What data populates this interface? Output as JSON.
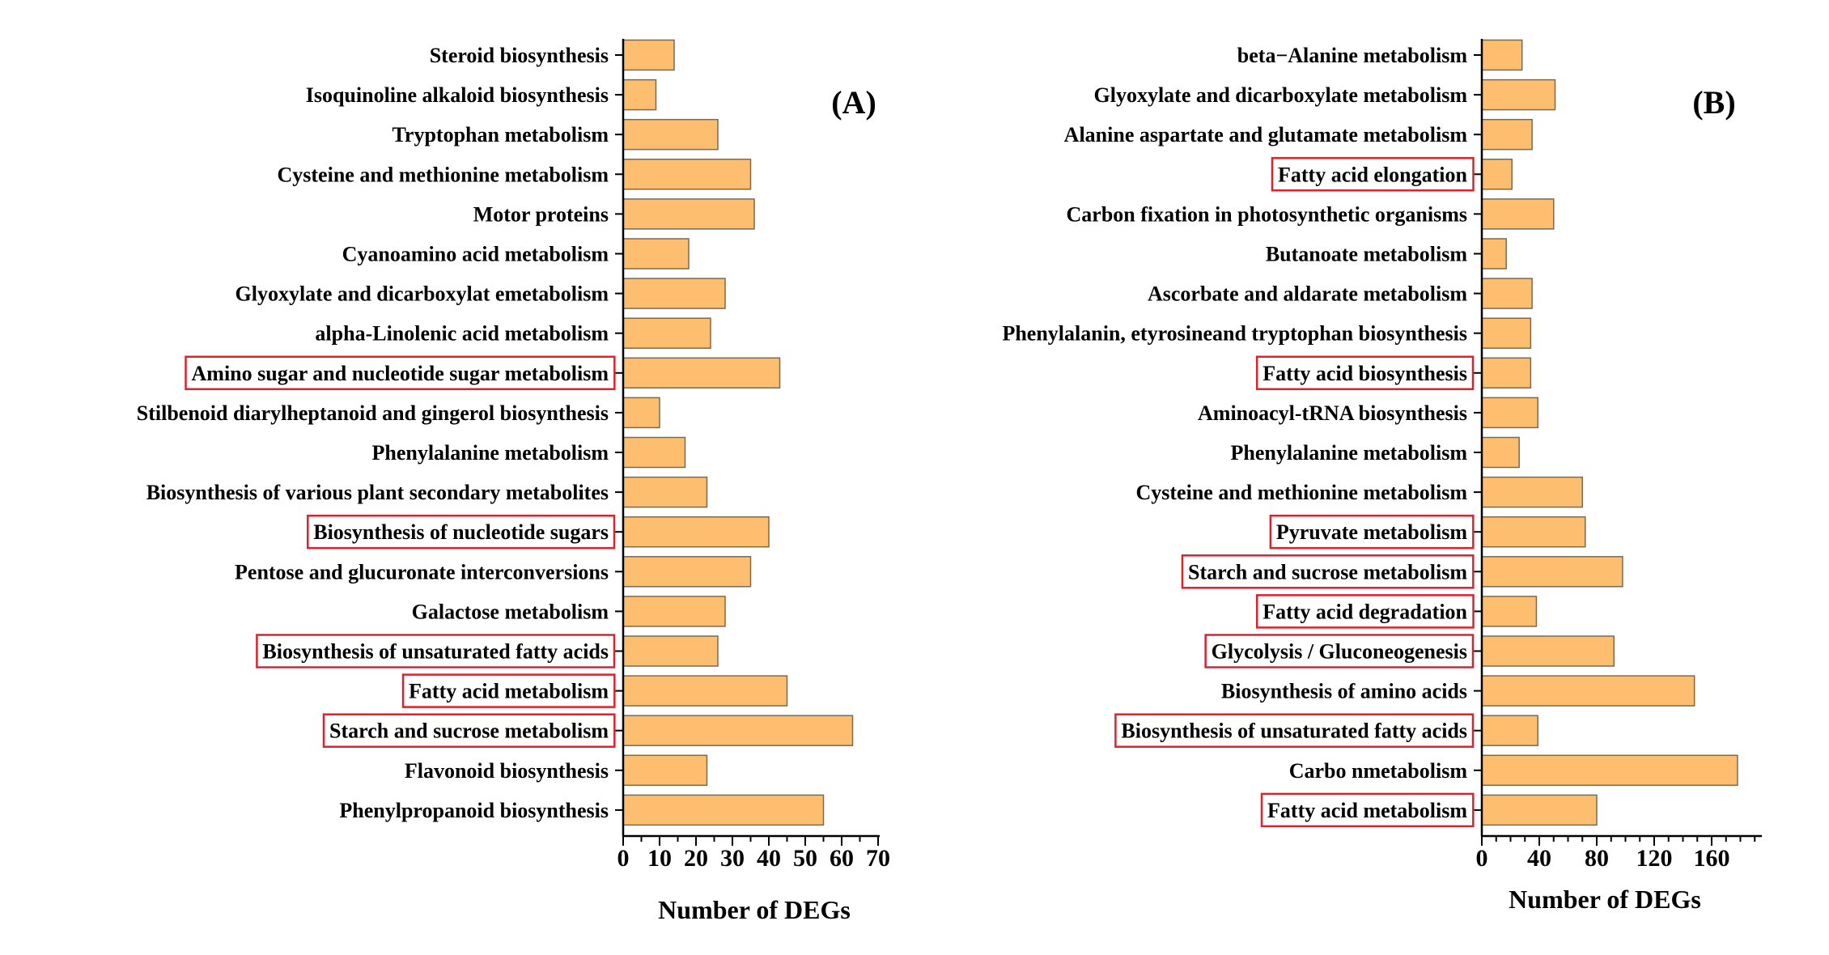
{
  "chart_data": [
    {
      "type": "bar",
      "orientation": "horizontal",
      "panel_label": "(A)",
      "xlabel": "Number of DEGs",
      "ylabel": "",
      "xlim": [
        0,
        70
      ],
      "ticks": [
        0,
        10,
        20,
        30,
        40,
        50,
        60,
        70
      ],
      "tick_labels": [
        "0",
        "10",
        "20",
        "30",
        "40",
        "50",
        "60",
        "70"
      ],
      "minor_ticks_per_major": 1,
      "bar_color": "#FDBF6F",
      "highlight_color": "#E0202A",
      "categories": [
        "Steroid biosynthesis",
        "Isoquinoline alkaloid biosynthesis",
        "Tryptophan metabolism",
        "Cysteine and methionine metabolism",
        "Motor proteins",
        "Cyanoamino acid metabolism",
        "Glyoxylate and dicarboxylat emetabolism",
        "alpha-Linolenic acid metabolism",
        "Amino sugar and nucleotide sugar metabolism",
        "Stilbenoid diarylheptanoid and gingerol biosynthesis",
        "Phenylalanine metabolism",
        "Biosynthesis of various plant secondary metabolites",
        "Biosynthesis of nucleotide sugars",
        "Pentose and glucuronate interconversions",
        "Galactose metabolism",
        "Biosynthesis of unsaturated fatty acids",
        "Fatty acid metabolism",
        "Starch and sucrose metabolism",
        "Flavonoid biosynthesis",
        "Phenylpropanoid biosynthesis"
      ],
      "values": [
        14,
        9,
        26,
        35,
        36,
        18,
        28,
        24,
        43,
        10,
        17,
        23,
        40,
        35,
        28,
        26,
        45,
        63,
        23,
        55
      ],
      "highlighted": [
        false,
        false,
        false,
        false,
        false,
        false,
        false,
        false,
        true,
        false,
        false,
        false,
        true,
        false,
        false,
        true,
        true,
        true,
        false,
        false
      ]
    },
    {
      "type": "bar",
      "orientation": "horizontal",
      "panel_label": "(B)",
      "xlabel": "Number of DEGs",
      "ylabel": "",
      "xlim": [
        0,
        195
      ],
      "ticks": [
        0,
        40,
        80,
        120,
        160
      ],
      "tick_labels": [
        "0",
        "40",
        "80",
        "120",
        "160"
      ],
      "minor_ticks_per_major": 3,
      "bar_color": "#FDBF6F",
      "highlight_color": "#E0202A",
      "categories": [
        "beta−Alanine metabolism",
        "Glyoxylate and dicarboxylate metabolism",
        "Alanine aspartate and glutamate metabolism",
        "Fatty acid elongation",
        "Carbon fixation in photosynthetic organisms",
        "Butanoate metabolism",
        "Ascorbate and aldarate metabolism",
        "Phenylalanin, etyrosineand tryptophan biosynthesis",
        "Fatty acid biosynthesis",
        "Aminoacyl-tRNA biosynthesis",
        "Phenylalanine metabolism",
        "Cysteine and methionine metabolism",
        "Pyruvate metabolism",
        "Starch and sucrose metabolism",
        "Fatty acid degradation",
        "Glycolysis / Gluconeogenesis",
        "Biosynthesis of amino acids",
        "Biosynthesis of unsaturated fatty acids",
        "Carbo nmetabolism",
        "Fatty acid metabolism"
      ],
      "values": [
        28,
        51,
        35,
        21,
        50,
        17,
        35,
        34,
        34,
        39,
        26,
        70,
        72,
        98,
        38,
        92,
        148,
        39,
        178,
        80
      ],
      "highlighted": [
        false,
        false,
        false,
        true,
        false,
        false,
        false,
        false,
        true,
        false,
        false,
        false,
        true,
        true,
        true,
        true,
        false,
        true,
        false,
        true
      ]
    }
  ]
}
